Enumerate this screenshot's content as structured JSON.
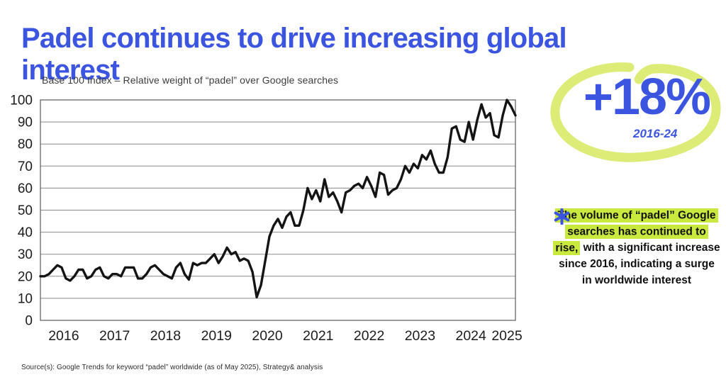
{
  "page": {
    "title": "Padel continues to drive increasing global interest",
    "source": "Source(s): Google Trends for keyword “padel” worldwide (as of May 2025), Strategy& analysis"
  },
  "callout": {
    "value": "+18%",
    "period": "2016-24",
    "circle_color": "#dcec77",
    "text_color": "#3b55e0"
  },
  "annotation": {
    "asterisk_icon": "heavy-asterisk",
    "highlighted": "The volume of “padel” Google searches has continued to rise,",
    "rest": " with a significant increase since 2016, indicating a surge in worldwide interest",
    "highlight_color": "#c9e93f"
  },
  "colors": {
    "accent_blue": "#3b55e0",
    "lime": "#dcec77",
    "highlight": "#c9e93f",
    "line": "#141414",
    "grid": "#8a8a8a",
    "border": "#5a5a5a",
    "axis_text": "#1c1c1c"
  },
  "chart_data": {
    "type": "line",
    "title": "Base 100 Index – Relative weight of “padel” over Google searches",
    "frequency": "monthly",
    "start": "2016-01",
    "end": "2025-05",
    "x_tick_labels": [
      "2016",
      "2017",
      "2018",
      "2019",
      "2020",
      "2021",
      "2022",
      "2023",
      "2024",
      "2025"
    ],
    "y_ticks": [
      0,
      10,
      20,
      30,
      40,
      50,
      60,
      70,
      80,
      90,
      100
    ],
    "ylim": [
      0,
      100
    ],
    "grid": true,
    "legend": "none",
    "series": [
      {
        "name": "padel Google search interest (base 100 index)",
        "values": [
          20,
          20,
          21,
          23,
          25,
          24,
          19,
          18,
          20,
          23,
          23,
          19,
          20,
          23,
          24,
          20,
          19,
          21,
          21,
          20,
          24,
          24,
          24,
          19,
          19,
          21,
          24,
          25,
          23,
          21,
          20,
          19,
          24,
          26,
          21,
          18.5,
          26,
          25,
          26,
          26,
          28,
          30,
          26,
          29,
          33,
          30,
          31,
          27,
          28,
          27,
          22,
          10.5,
          16,
          27,
          38,
          43,
          46,
          42,
          47,
          49,
          43,
          43,
          50,
          60,
          55,
          59,
          54,
          64,
          56,
          58,
          54,
          49,
          58,
          59,
          61,
          62,
          60,
          65,
          61,
          56,
          67,
          66,
          57,
          59,
          60,
          64,
          70,
          67,
          71,
          69,
          75,
          73,
          77,
          71,
          67,
          67,
          74,
          87,
          88,
          82,
          81,
          90,
          82,
          91,
          98,
          92,
          94,
          84,
          83,
          93,
          100,
          97,
          93
        ]
      }
    ]
  }
}
